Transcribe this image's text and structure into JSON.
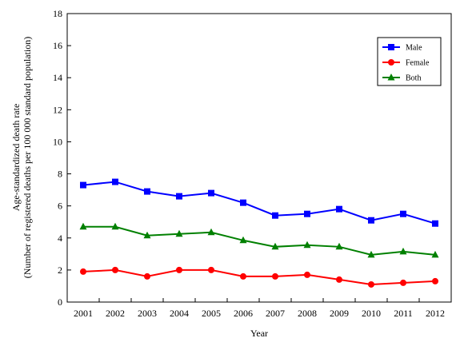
{
  "chart_data": {
    "type": "line",
    "title": "",
    "xlabel": "Year",
    "ylabel": [
      "Age-standardized death rate",
      "(Number of registered deaths per 100 000 standard population)"
    ],
    "categories": [
      "2001",
      "2002",
      "2003",
      "2004",
      "2005",
      "2006",
      "2007",
      "2008",
      "2009",
      "2010",
      "2011",
      "2012"
    ],
    "ylim": [
      0,
      18
    ],
    "yticks": [
      0,
      2,
      4,
      6,
      8,
      10,
      12,
      14,
      16,
      18
    ],
    "grid": false,
    "legend_position": "top-right",
    "series": [
      {
        "name": "Male",
        "color": "#0000ff",
        "marker": "square",
        "values": [
          7.3,
          7.5,
          6.9,
          6.6,
          6.8,
          6.2,
          5.4,
          5.5,
          5.8,
          5.1,
          5.5,
          4.9
        ]
      },
      {
        "name": "Female",
        "color": "#ff0000",
        "marker": "circle",
        "values": [
          1.9,
          2.0,
          1.6,
          2.0,
          2.0,
          1.6,
          1.6,
          1.7,
          1.4,
          1.1,
          1.2,
          1.3
        ]
      },
      {
        "name": "Both",
        "color": "#008000",
        "marker": "triangle",
        "values": [
          4.7,
          4.7,
          4.15,
          4.25,
          4.35,
          3.85,
          3.45,
          3.55,
          3.45,
          2.95,
          3.15,
          2.95
        ]
      }
    ]
  }
}
